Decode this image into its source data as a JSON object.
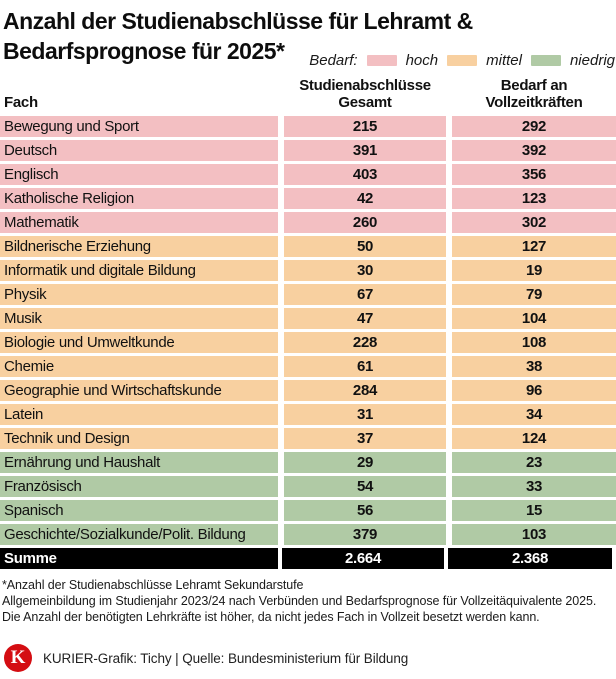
{
  "title": {
    "line1": "Anzahl der Studienabschlüsse für Lehramt &",
    "line2": "Bedarfsprognose für 2025*"
  },
  "legend": {
    "label": "Bedarf:",
    "items": [
      {
        "key": "hoch",
        "label": "hoch",
        "color": "#f3bfc2"
      },
      {
        "key": "mittel",
        "label": "mittel",
        "color": "#f8d0a0"
      },
      {
        "key": "niedrig",
        "label": "niedrig",
        "color": "#b0caa5"
      }
    ]
  },
  "colors": {
    "hoch": "#f3bfc2",
    "mittel": "#f8d0a0",
    "niedrig": "#b0caa5",
    "total_bg": "#000000",
    "total_text": "#ffffff",
    "logo_red": "#d40d12"
  },
  "table": {
    "header": {
      "col1": "Fach",
      "col2_line1": "Studienabschlüsse",
      "col2_line2": "Gesamt",
      "col3_line1": "Bedarf an",
      "col3_line2": "Vollzeitkräften"
    },
    "rows": [
      {
        "fach": "Bewegung und Sport",
        "abschluesse": "215",
        "bedarf": "292",
        "level": "hoch"
      },
      {
        "fach": "Deutsch",
        "abschluesse": "391",
        "bedarf": "392",
        "level": "hoch"
      },
      {
        "fach": "Englisch",
        "abschluesse": "403",
        "bedarf": "356",
        "level": "hoch"
      },
      {
        "fach": "Katholische Religion",
        "abschluesse": "42",
        "bedarf": "123",
        "level": "hoch"
      },
      {
        "fach": "Mathematik",
        "abschluesse": "260",
        "bedarf": "302",
        "level": "hoch"
      },
      {
        "fach": "Bildnerische Erziehung",
        "abschluesse": "50",
        "bedarf": "127",
        "level": "mittel"
      },
      {
        "fach": "Informatik und digitale Bildung",
        "abschluesse": "30",
        "bedarf": "19",
        "level": "mittel"
      },
      {
        "fach": "Physik",
        "abschluesse": "67",
        "bedarf": "79",
        "level": "mittel"
      },
      {
        "fach": "Musik",
        "abschluesse": "47",
        "bedarf": "104",
        "level": "mittel"
      },
      {
        "fach": "Biologie und Umweltkunde",
        "abschluesse": "228",
        "bedarf": "108",
        "level": "mittel"
      },
      {
        "fach": "Chemie",
        "abschluesse": "61",
        "bedarf": "38",
        "level": "mittel"
      },
      {
        "fach": "Geographie und Wirtschaftskunde",
        "abschluesse": "284",
        "bedarf": "96",
        "level": "mittel"
      },
      {
        "fach": "Latein",
        "abschluesse": "31",
        "bedarf": "34",
        "level": "mittel"
      },
      {
        "fach": "Technik und Design",
        "abschluesse": "37",
        "bedarf": "124",
        "level": "mittel"
      },
      {
        "fach": "Ernährung und Haushalt",
        "abschluesse": "29",
        "bedarf": "23",
        "level": "niedrig"
      },
      {
        "fach": "Französisch",
        "abschluesse": "54",
        "bedarf": "33",
        "level": "niedrig"
      },
      {
        "fach": "Spanisch",
        "abschluesse": "56",
        "bedarf": "15",
        "level": "niedrig"
      },
      {
        "fach": "Geschichte/Sozialkunde/Polit. Bildung",
        "abschluesse": "379",
        "bedarf": "103",
        "level": "niedrig"
      }
    ],
    "total": {
      "label": "Summe",
      "abschluesse": "2.664",
      "bedarf": "2.368"
    }
  },
  "footnote": {
    "line1": "*Anzahl der Studienabschlüsse Lehramt Sekundarstufe",
    "line2": "Allgemeinbildung im Studienjahr 2023/24 nach Verbünden und Bedarfsprognose für Vollzeitäquivalente 2025. Die Anzahl der benötigten Lehrkräfte ist höher, da nicht jedes Fach in Vollzeit besetzt werden kann."
  },
  "source": {
    "logo_letter": "K",
    "text": "KURIER-Grafik: Tichy | Quelle: Bundesministerium für Bildung"
  },
  "chart_data": {
    "type": "table",
    "title": "Anzahl der Studienabschlüsse für Lehramt & Bedarfsprognose für 2025*",
    "columns": [
      "Fach",
      "Studienabschlüsse Gesamt",
      "Bedarf an Vollzeitkräften"
    ],
    "legend": {
      "label": "Bedarf",
      "categories": [
        "hoch",
        "mittel",
        "niedrig"
      ],
      "colors": [
        "#f3bfc2",
        "#f8d0a0",
        "#b0caa5"
      ],
      "position": "top-right"
    },
    "rows": [
      {
        "fach": "Bewegung und Sport",
        "studienabschluesse_gesamt": 215,
        "bedarf_vollzeitkraefte": 292,
        "bedarf_kategorie": "hoch"
      },
      {
        "fach": "Deutsch",
        "studienabschluesse_gesamt": 391,
        "bedarf_vollzeitkraefte": 392,
        "bedarf_kategorie": "hoch"
      },
      {
        "fach": "Englisch",
        "studienabschluesse_gesamt": 403,
        "bedarf_vollzeitkraefte": 356,
        "bedarf_kategorie": "hoch"
      },
      {
        "fach": "Katholische Religion",
        "studienabschluesse_gesamt": 42,
        "bedarf_vollzeitkraefte": 123,
        "bedarf_kategorie": "hoch"
      },
      {
        "fach": "Mathematik",
        "studienabschluesse_gesamt": 260,
        "bedarf_vollzeitkraefte": 302,
        "bedarf_kategorie": "hoch"
      },
      {
        "fach": "Bildnerische Erziehung",
        "studienabschluesse_gesamt": 50,
        "bedarf_vollzeitkraefte": 127,
        "bedarf_kategorie": "mittel"
      },
      {
        "fach": "Informatik und digitale Bildung",
        "studienabschluesse_gesamt": 30,
        "bedarf_vollzeitkraefte": 19,
        "bedarf_kategorie": "mittel"
      },
      {
        "fach": "Physik",
        "studienabschluesse_gesamt": 67,
        "bedarf_vollzeitkraefte": 79,
        "bedarf_kategorie": "mittel"
      },
      {
        "fach": "Musik",
        "studienabschluesse_gesamt": 47,
        "bedarf_vollzeitkraefte": 104,
        "bedarf_kategorie": "mittel"
      },
      {
        "fach": "Biologie und Umweltkunde",
        "studienabschluesse_gesamt": 228,
        "bedarf_vollzeitkraefte": 108,
        "bedarf_kategorie": "mittel"
      },
      {
        "fach": "Chemie",
        "studienabschluesse_gesamt": 61,
        "bedarf_vollzeitkraefte": 38,
        "bedarf_kategorie": "mittel"
      },
      {
        "fach": "Geographie und Wirtschaftskunde",
        "studienabschluesse_gesamt": 284,
        "bedarf_vollzeitkraefte": 96,
        "bedarf_kategorie": "mittel"
      },
      {
        "fach": "Latein",
        "studienabschluesse_gesamt": 31,
        "bedarf_vollzeitkraefte": 34,
        "bedarf_kategorie": "mittel"
      },
      {
        "fach": "Technik und Design",
        "studienabschluesse_gesamt": 37,
        "bedarf_vollzeitkraefte": 124,
        "bedarf_kategorie": "mittel"
      },
      {
        "fach": "Ernährung und Haushalt",
        "studienabschluesse_gesamt": 29,
        "bedarf_vollzeitkraefte": 23,
        "bedarf_kategorie": "niedrig"
      },
      {
        "fach": "Französisch",
        "studienabschluesse_gesamt": 54,
        "bedarf_vollzeitkraefte": 33,
        "bedarf_kategorie": "niedrig"
      },
      {
        "fach": "Spanisch",
        "studienabschluesse_gesamt": 56,
        "bedarf_vollzeitkraefte": 15,
        "bedarf_kategorie": "niedrig"
      },
      {
        "fach": "Geschichte/Sozialkunde/Polit. Bildung",
        "studienabschluesse_gesamt": 379,
        "bedarf_vollzeitkraefte": 103,
        "bedarf_kategorie": "niedrig"
      }
    ],
    "total": {
      "fach": "Summe",
      "studienabschluesse_gesamt": 2664,
      "bedarf_vollzeitkraefte": 2368
    }
  }
}
